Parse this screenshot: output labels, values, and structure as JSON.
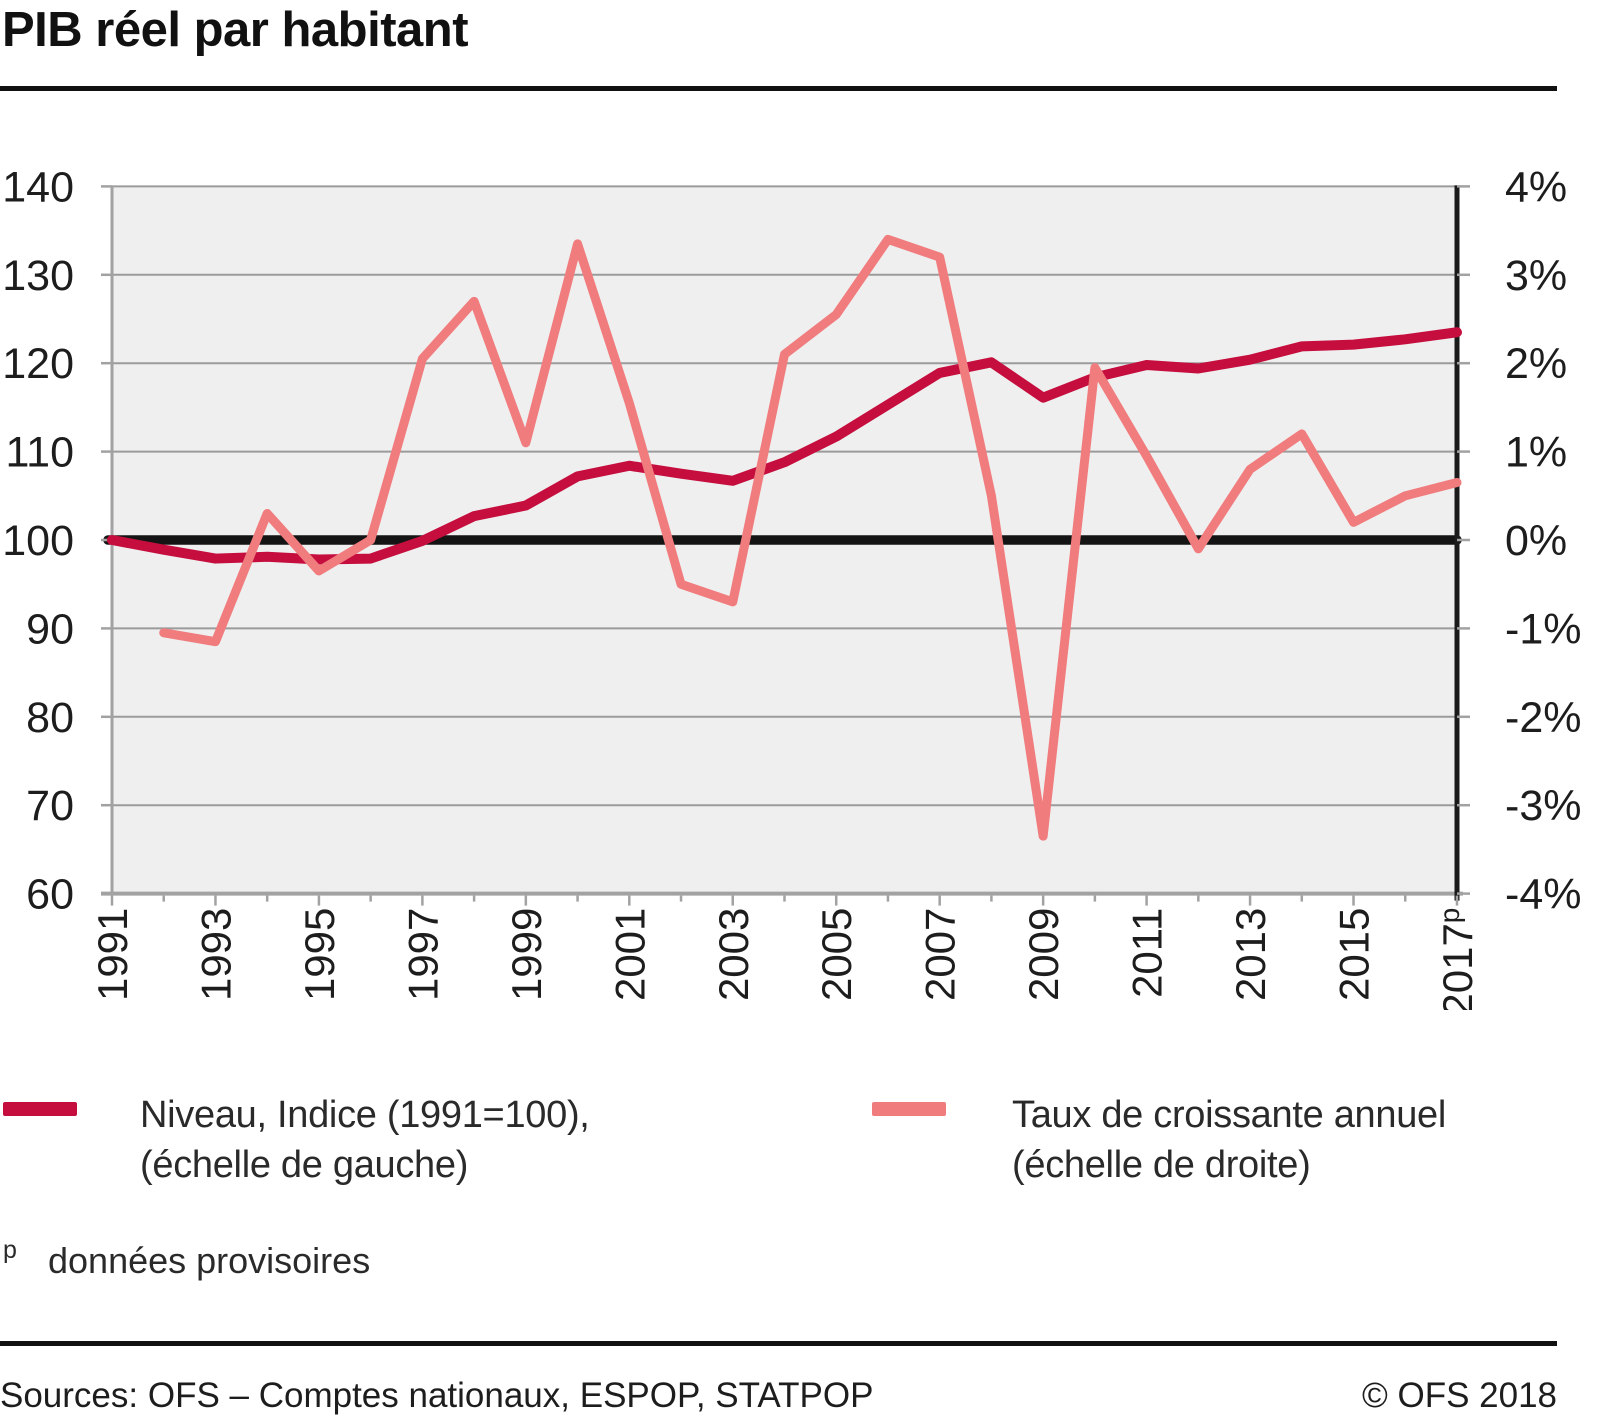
{
  "title": "PIB réel par habitant",
  "chart_data": {
    "type": "line",
    "title": "PIB réel par habitant",
    "xlabel": "",
    "ylabel_left": "Indice (1991=100)",
    "ylabel_right": "Taux de croissance annuel (%)",
    "grid": true,
    "legend_position": "bottom",
    "years": [
      1991,
      1992,
      1993,
      1994,
      1995,
      1996,
      1997,
      1998,
      1999,
      2000,
      2001,
      2002,
      2003,
      2004,
      2005,
      2006,
      2007,
      2008,
      2009,
      2010,
      2011,
      2012,
      2013,
      2014,
      2015,
      2016,
      2017
    ],
    "x_tick_labels": [
      {
        "year": 1991,
        "label": "1991"
      },
      {
        "year": 1993,
        "label": "1993"
      },
      {
        "year": 1995,
        "label": "1995"
      },
      {
        "year": 1997,
        "label": "1997"
      },
      {
        "year": 1999,
        "label": "1999"
      },
      {
        "year": 2001,
        "label": "2001"
      },
      {
        "year": 2003,
        "label": "2003"
      },
      {
        "year": 2005,
        "label": "2005"
      },
      {
        "year": 2007,
        "label": "2007"
      },
      {
        "year": 2009,
        "label": "2009"
      },
      {
        "year": 2011,
        "label": "2011"
      },
      {
        "year": 2013,
        "label": "2013"
      },
      {
        "year": 2015,
        "label": "2015"
      },
      {
        "year": 2017,
        "label": "2017",
        "sup": "p"
      }
    ],
    "left_axis": {
      "ticks": [
        140,
        130,
        120,
        110,
        100,
        90,
        80,
        70,
        60
      ],
      "range": [
        60,
        140
      ]
    },
    "right_axis": {
      "ticks": [
        {
          "value": 4,
          "label": "4%"
        },
        {
          "value": 3,
          "label": "3%"
        },
        {
          "value": 2,
          "label": "2%"
        },
        {
          "value": 1,
          "label": "1%"
        },
        {
          "value": 0,
          "label": "0%"
        },
        {
          "value": -1,
          "label": "-1%"
        },
        {
          "value": -2,
          "label": "-2%"
        },
        {
          "value": -3,
          "label": "-3%"
        },
        {
          "value": -4,
          "label": "-4%"
        }
      ],
      "range": [
        -4,
        4
      ]
    },
    "baseline": {
      "left_value": 100,
      "right_label": "0%"
    },
    "series": [
      {
        "name": "Niveau, Indice (1991=100), (échelle de gauche)",
        "axis": "left",
        "color": "#c50d3e",
        "values": [
          100,
          98.9,
          97.9,
          98.1,
          97.8,
          97.9,
          99.9,
          102.7,
          103.9,
          107.2,
          108.4,
          107.5,
          106.7,
          108.8,
          111.7,
          115.3,
          118.9,
          120.1,
          116.1,
          118.4,
          119.8,
          119.4,
          120.4,
          121.9,
          122.1,
          122.7,
          123.5
        ]
      },
      {
        "name": "Taux de croissante annuel (échelle de droite)",
        "axis": "right",
        "color": "#f07c7e",
        "values": [
          null,
          -1.05,
          -1.15,
          0.3,
          -0.35,
          0.0,
          2.05,
          2.7,
          1.1,
          3.35,
          1.55,
          -0.5,
          -0.7,
          2.1,
          2.55,
          3.4,
          3.2,
          0.5,
          -3.35,
          1.95,
          0.95,
          -0.1,
          0.8,
          1.2,
          0.2,
          0.5,
          0.65
        ]
      }
    ],
    "colors": {
      "plot_bg": "#efefef",
      "grid": "#9b9b9b",
      "zero_line": "#141414",
      "axis_gray": "#a2a2a2",
      "axis_black": "#1b1b1b"
    }
  },
  "legend": {
    "niveau": {
      "line1": "Niveau, Indice (1991=100),",
      "line2": "(échelle de gauche)"
    },
    "taux": {
      "line1": "Taux de croissante annuel",
      "line2": "(échelle de droite)"
    }
  },
  "footnote": {
    "marker": "p",
    "text": "données provisoires"
  },
  "footer": {
    "sources": "Sources: OFS – Comptes nationaux, ESPOP, STATPOP",
    "copyright": "© OFS 2018"
  }
}
